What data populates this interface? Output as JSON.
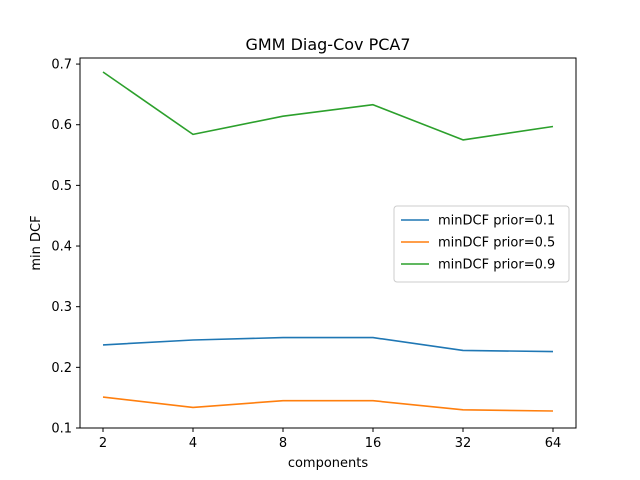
{
  "chart_data": {
    "type": "line",
    "title": "GMM Diag-Cov PCA7",
    "xlabel": "components",
    "ylabel": "min DCF",
    "categories": [
      "2",
      "4",
      "8",
      "16",
      "32",
      "64"
    ],
    "ylim": [
      0.1,
      0.71
    ],
    "yticks": [
      "0.1",
      "0.2",
      "0.3",
      "0.4",
      "0.5",
      "0.6",
      "0.7"
    ],
    "grid": false,
    "legend_position": "center-right",
    "series": [
      {
        "name": "minDCF prior=0.1",
        "color": "#1f77b4",
        "values": [
          0.237,
          0.245,
          0.249,
          0.249,
          0.228,
          0.226
        ]
      },
      {
        "name": "minDCF prior=0.5",
        "color": "#ff7f0e",
        "values": [
          0.151,
          0.134,
          0.145,
          0.145,
          0.13,
          0.128
        ]
      },
      {
        "name": "minDCF prior=0.9",
        "color": "#2ca02c",
        "values": [
          0.687,
          0.584,
          0.614,
          0.633,
          0.575,
          0.597
        ]
      }
    ]
  }
}
